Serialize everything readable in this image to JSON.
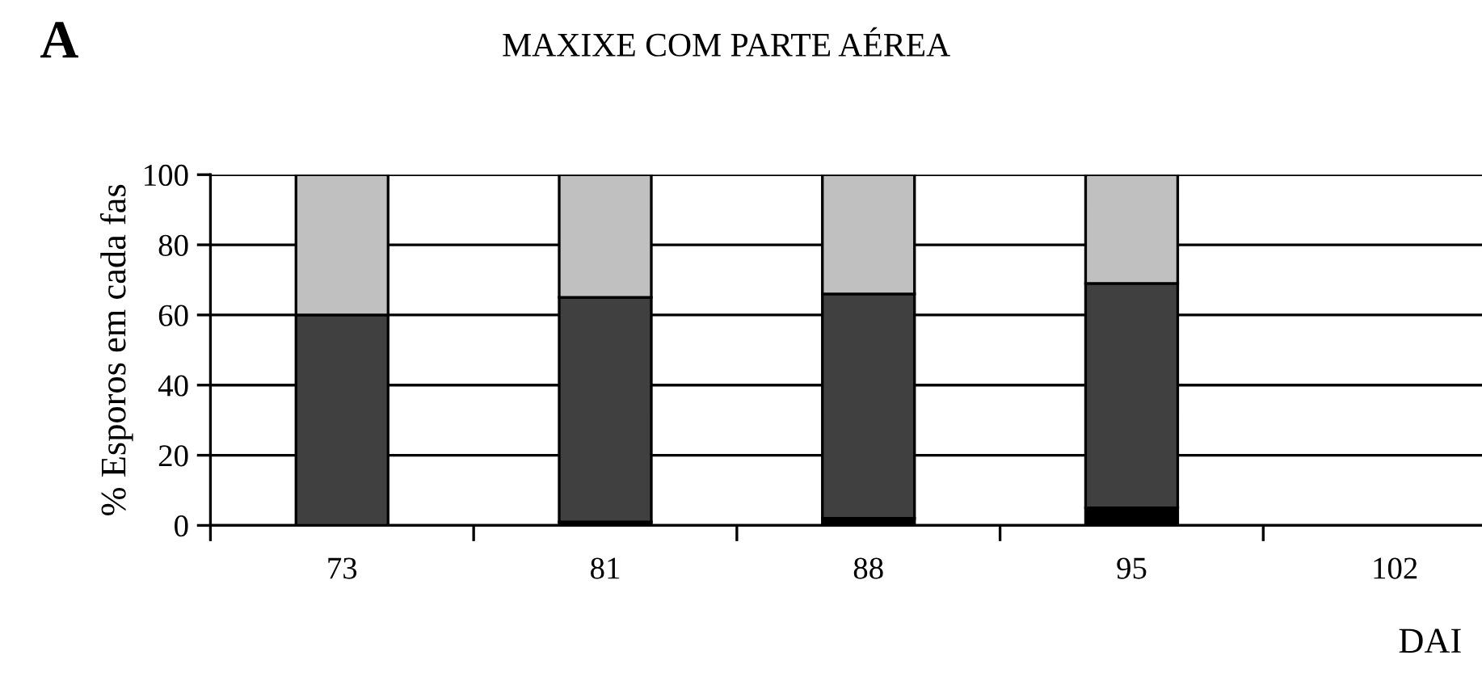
{
  "chart_data": {
    "type": "bar",
    "stacked": true,
    "title": "MAXIXE COM PARTE AÉREA",
    "xlabel": "DAI",
    "ylabel": "% Esporos em cada fas",
    "annotations": [
      "A"
    ],
    "categories": [
      "73",
      "81",
      "88",
      "95",
      "102"
    ],
    "series": [
      {
        "color": "#000000",
        "values": [
          0,
          1,
          2,
          5,
          null
        ]
      },
      {
        "color": "#404040",
        "values": [
          60,
          64,
          64,
          64,
          null
        ]
      },
      {
        "color": "#c0c0c0",
        "values": [
          40,
          35,
          34,
          31,
          null
        ]
      }
    ],
    "ylim": [
      0,
      100
    ],
    "yticks": [
      0,
      20,
      40,
      60,
      80,
      100
    ],
    "grid": "y"
  }
}
